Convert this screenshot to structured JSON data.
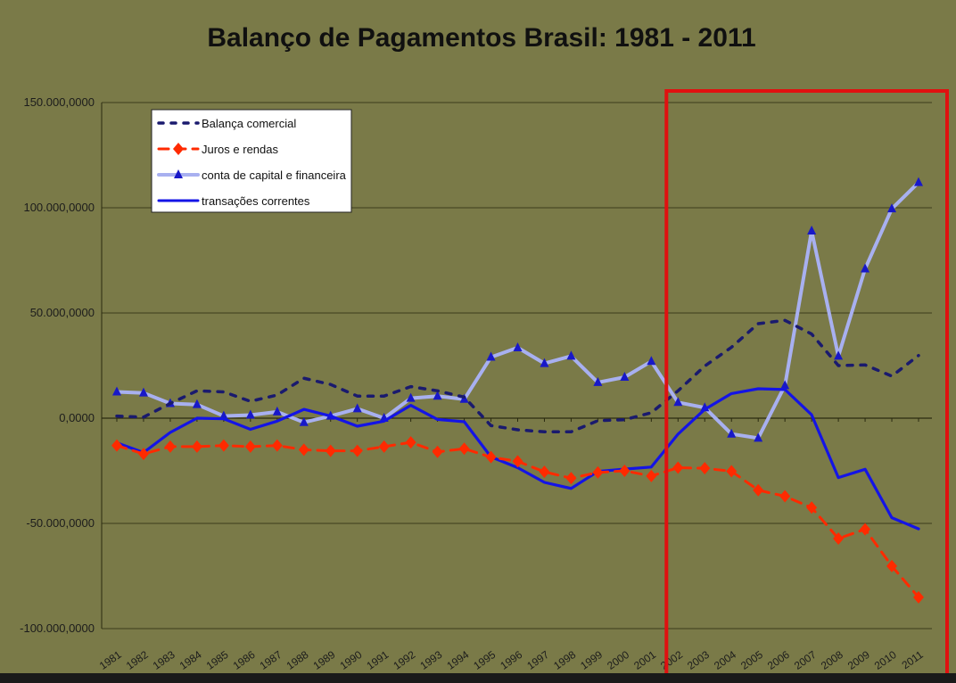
{
  "chart_data": {
    "type": "line",
    "title": "Balanço de Pagamentos Brasil: 1981 - 2011",
    "xlabel": "",
    "ylabel": "",
    "ylim": [
      -100000000,
      150000000
    ],
    "yticks": [
      150000000,
      100000000,
      50000000,
      0,
      -50000000,
      -100000000
    ],
    "ytick_labels": [
      "150.000,0000",
      "100.000,0000",
      "50.000,0000",
      "0,0000",
      "-50.000,0000",
      "-100.000,0000"
    ],
    "categories": [
      "1981",
      "1982",
      "1983",
      "1984",
      "1985",
      "1986",
      "1987",
      "1988",
      "1989",
      "1990",
      "1991",
      "1992",
      "1993",
      "1994",
      "1995",
      "1996",
      "1997",
      "1998",
      "1999",
      "2000",
      "2001",
      "2002",
      "2003",
      "2004",
      "2005",
      "2006",
      "2007",
      "2008",
      "2009",
      "2010",
      "2011"
    ],
    "grid": "horizontal",
    "legend_position": "top-left",
    "series": [
      {
        "name": "Balança comercial",
        "color": "#1a1a6e",
        "style": "dotted",
        "values": [
          1000000,
          500000,
          7000000,
          13000000,
          12500000,
          8000000,
          11000000,
          19000000,
          16000000,
          10500000,
          10500000,
          15000000,
          13000000,
          10000000,
          -3500000,
          -5500000,
          -6500000,
          -6500000,
          -1200000,
          -700000,
          2600000,
          13000000,
          24800000,
          33700000,
          44900000,
          46500000,
          40000000,
          25000000,
          25300000,
          20000000,
          29800000
        ]
      },
      {
        "name": "Juros e rendas",
        "color": "#ff2a00",
        "style": "dashed",
        "marker": "diamond",
        "values": [
          -13000000,
          -17000000,
          -13500000,
          -13500000,
          -13000000,
          -13500000,
          -13000000,
          -15000000,
          -15500000,
          -15500000,
          -13500000,
          -11500000,
          -16000000,
          -14500000,
          -18500000,
          -20500000,
          -25500000,
          -28500000,
          -25800000,
          -25000000,
          -27500000,
          -23500000,
          -23800000,
          -25200000,
          -34200000,
          -37100000,
          -42500000,
          -57200000,
          -52800000,
          -70300000,
          -85100000
        ]
      },
      {
        "name": "conta de capital e financeira",
        "color": "#a8b0f0",
        "style": "solid",
        "marker": "triangle",
        "values": [
          12500000,
          12000000,
          7000000,
          6500000,
          1000000,
          1500000,
          3000000,
          -2000000,
          1000000,
          4500000,
          0,
          9500000,
          10500000,
          9000000,
          29000000,
          33500000,
          26000000,
          29500000,
          17000000,
          19500000,
          27000000,
          7500000,
          5000000,
          -7500000,
          -9500000,
          15500000,
          89000000,
          29500000,
          71000000,
          99500000,
          112000000
        ]
      },
      {
        "name": "transações correntes",
        "color": "#1414e6",
        "style": "solid",
        "values": [
          -11700000,
          -16300000,
          -6800000,
          0,
          -300000,
          -5300000,
          -1400000,
          4200000,
          1000000,
          -3800000,
          -1400000,
          6100000,
          -600000,
          -1700000,
          -18400000,
          -23500000,
          -30500000,
          -33400000,
          -25300000,
          -24200000,
          -23200000,
          -7600000,
          4200000,
          11700000,
          14000000,
          13600000,
          1600000,
          -28200000,
          -24300000,
          -47300000,
          -52600000
        ]
      }
    ]
  },
  "annotation": {
    "color": "#e01010",
    "from_category": "2002",
    "to_category": "2011"
  }
}
